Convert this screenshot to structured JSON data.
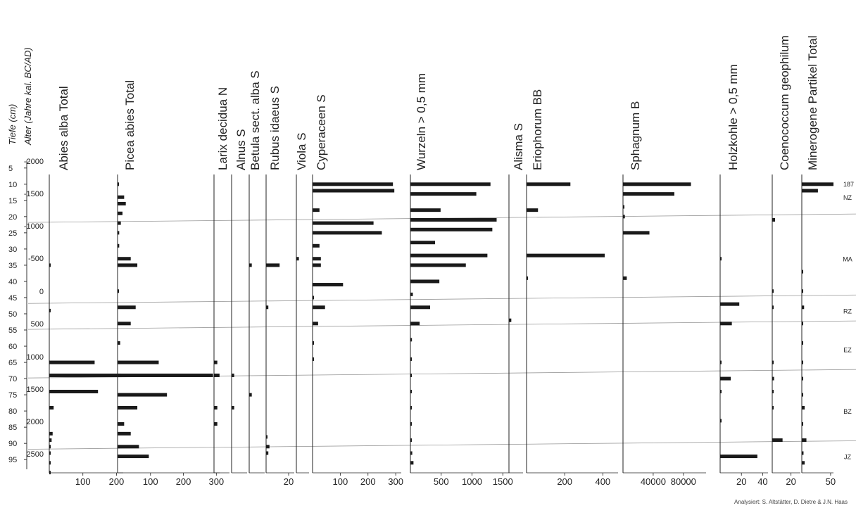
{
  "chart_data": {
    "type": "bar",
    "depth_axis": {
      "label": "Tiefe (cm)",
      "ticks": [
        "5",
        "10",
        "15",
        "20",
        "25",
        "30",
        "35",
        "40",
        "45",
        "50",
        "55",
        "60",
        "65",
        "70",
        "75",
        "80",
        "85",
        "90",
        "95"
      ]
    },
    "age_axis": {
      "label": "Alter (Jahre kal. BC/AD)",
      "ticks": [
        "-2000",
        "-1500",
        "-1000",
        "-500",
        "0",
        "500",
        "1000",
        "1500",
        "2000",
        "2500"
      ]
    },
    "zones": {
      "labels": [
        "NZ",
        "MA",
        "RZ",
        "EZ",
        "BZ",
        "JZ"
      ],
      "boundary_depths": [
        20.5,
        45.5,
        53.5,
        68.5,
        90.5
      ]
    },
    "panels": [
      {
        "label": "Abies alba Total",
        "xmax": 220,
        "ticks": [
          "100",
          "200"
        ],
        "tick_values": [
          100,
          200
        ],
        "depths": [
          35,
          49,
          65,
          69,
          74,
          79,
          87,
          89,
          91,
          93,
          96,
          99
        ],
        "values": [
          1,
          2,
          135,
          213,
          145,
          13,
          10,
          7,
          3,
          3,
          3,
          3
        ]
      },
      {
        "label": "Picea abies Total",
        "xmax": 310,
        "ticks": [
          "100",
          "200",
          "300"
        ],
        "tick_values": [
          100,
          200,
          300
        ],
        "depths": [
          10,
          14,
          16,
          19,
          22,
          25,
          29,
          33,
          35,
          43,
          48,
          53,
          59,
          65,
          69,
          75,
          79,
          84,
          87,
          91,
          94
        ],
        "values": [
          2,
          20,
          25,
          15,
          10,
          5,
          5,
          40,
          60,
          2,
          55,
          40,
          8,
          125,
          290,
          150,
          60,
          20,
          40,
          65,
          95
        ]
      },
      {
        "label": "Larix decidua N",
        "xmax": 14,
        "ticks": [],
        "tick_values": [],
        "depths": [
          65,
          69,
          79,
          84
        ],
        "values": [
          3,
          5,
          3,
          3
        ]
      },
      {
        "label": "Alnus S",
        "xmax": 12,
        "ticks": [],
        "tick_values": [],
        "depths": [
          69,
          79
        ],
        "values": [
          2,
          2
        ]
      },
      {
        "label": "Betula sect. alba S",
        "xmax": 12,
        "ticks": [],
        "tick_values": [],
        "depths": [
          35,
          75
        ],
        "values": [
          2,
          2
        ]
      },
      {
        "label": "Rubus idaeus S",
        "xmax": 25,
        "ticks": [
          "20"
        ],
        "tick_values": [
          20
        ],
        "depths": [
          35,
          48,
          88,
          91,
          93
        ],
        "values": [
          12,
          2,
          1,
          3,
          2
        ]
      },
      {
        "label": "Viola S",
        "xmax": 10,
        "ticks": [],
        "tick_values": [],
        "depths": [
          33
        ],
        "values": [
          2
        ]
      },
      {
        "label": "Cyperaceen S",
        "xmax": 320,
        "ticks": [
          "100",
          "200",
          "300"
        ],
        "tick_values": [
          100,
          200,
          300
        ],
        "depths": [
          10,
          12,
          18,
          22,
          25,
          29,
          33,
          35,
          41,
          45,
          48,
          53,
          59,
          64
        ],
        "values": [
          290,
          295,
          25,
          220,
          250,
          25,
          30,
          30,
          110,
          5,
          45,
          20,
          3,
          3
        ]
      },
      {
        "label": "Wurzeln > 0,5 mm",
        "xmax": 1600,
        "ticks": [
          "500",
          "1000",
          "1500"
        ],
        "tick_values": [
          500,
          1000,
          1500
        ],
        "depths": [
          10,
          13,
          18,
          21,
          24,
          28,
          32,
          35,
          40,
          44,
          48,
          53,
          58,
          64,
          69,
          74,
          79,
          84,
          89,
          93,
          96
        ],
        "values": [
          1300,
          1070,
          490,
          1400,
          1330,
          400,
          1250,
          900,
          470,
          40,
          320,
          150,
          25,
          20,
          20,
          20,
          20,
          20,
          20,
          30,
          50
        ]
      },
      {
        "label": "Alisma S",
        "xmax": 12,
        "ticks": [],
        "tick_values": [],
        "depths": [
          52
        ],
        "values": [
          2
        ]
      },
      {
        "label": "Eriophorum BB",
        "xmax": 480,
        "ticks": [
          "200",
          "400"
        ],
        "tick_values": [
          200,
          400
        ],
        "depths": [
          10,
          18,
          32,
          39
        ],
        "values": [
          230,
          60,
          410,
          3
        ]
      },
      {
        "label": "Sphagnum B",
        "xmax": 110000,
        "ticks": [
          "40000",
          "80000"
        ],
        "tick_values": [
          40000,
          80000
        ],
        "depths": [
          10,
          13,
          17,
          20,
          25,
          39
        ],
        "values": [
          90000,
          68000,
          1000,
          2500,
          35000,
          5000
        ]
      },
      {
        "label": "Holzkohle > 0,5 mm",
        "xmax": 45,
        "ticks": [
          "20",
          "40"
        ],
        "tick_values": [
          20,
          40
        ],
        "depths": [
          33,
          47,
          53,
          65,
          70,
          74,
          83,
          94
        ],
        "values": [
          0.5,
          18,
          11,
          1,
          10,
          1,
          1,
          35
        ]
      },
      {
        "label": "Coenococcum geophilum",
        "xmax": 30,
        "ticks": [
          "20"
        ],
        "tick_values": [
          20
        ],
        "depths": [
          21,
          43,
          48,
          65,
          70,
          74,
          79,
          89
        ],
        "values": [
          3,
          1,
          1,
          1,
          2,
          1,
          1,
          11
        ]
      },
      {
        "label": "Minerogene Partikel Total",
        "xmax": 55,
        "ticks": [
          "50"
        ],
        "tick_values": [
          50
        ],
        "depths": [
          10,
          12,
          37,
          43,
          48,
          53,
          59,
          65,
          70,
          75,
          79,
          84,
          89,
          93,
          96
        ],
        "values": [
          187,
          28,
          2,
          2,
          4,
          2,
          2,
          2,
          2,
          2,
          5,
          2,
          8,
          3,
          5
        ],
        "annotation": "187"
      }
    ]
  },
  "credit": "Analysiert: S. Altstätter, D. Dietre & J.N. Haas"
}
